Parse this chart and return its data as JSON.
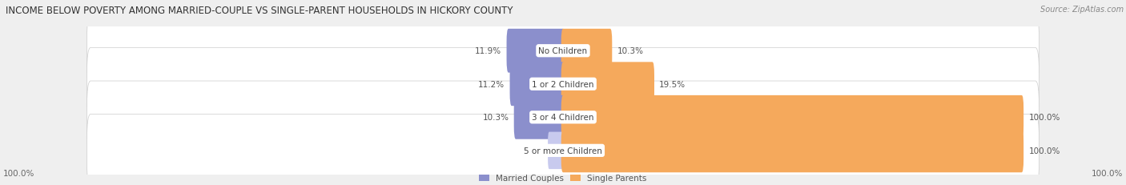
{
  "title": "INCOME BELOW POVERTY AMONG MARRIED-COUPLE VS SINGLE-PARENT HOUSEHOLDS IN HICKORY COUNTY",
  "source": "Source: ZipAtlas.com",
  "categories": [
    "No Children",
    "1 or 2 Children",
    "3 or 4 Children",
    "5 or more Children"
  ],
  "married_values": [
    11.9,
    11.2,
    10.3,
    0.0
  ],
  "single_values": [
    10.3,
    19.5,
    100.0,
    100.0
  ],
  "married_color": "#8b8fcc",
  "single_color": "#f5a95c",
  "married_color_light": "#c8caee",
  "single_color_light": "#f9d4a8",
  "married_label": "Married Couples",
  "single_label": "Single Parents",
  "bg_color": "#efefef",
  "row_bg_color": "#ffffff",
  "title_fontsize": 8.5,
  "source_fontsize": 7.0,
  "label_fontsize": 7.5,
  "value_fontsize": 7.5,
  "axis_max": 100.0,
  "left_axis_label": "100.0%",
  "right_axis_label": "100.0%"
}
